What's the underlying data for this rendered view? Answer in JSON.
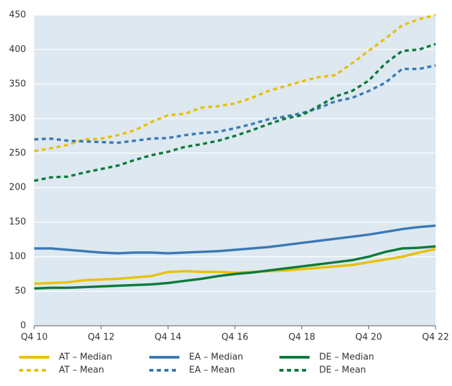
{
  "chart_data": {
    "type": "line",
    "categories": [
      "Q4 10",
      null,
      null,
      null,
      "Q4 12",
      null,
      null,
      null,
      "Q4 14",
      null,
      null,
      null,
      "Q4 16",
      null,
      null,
      null,
      "Q4 18",
      null,
      null,
      null,
      "Q4 20",
      null,
      null,
      null,
      "Q4 22"
    ],
    "series": [
      {
        "name": "AT – Median",
        "color": "#e8c100",
        "style": "solid",
        "values": [
          61,
          62,
          63,
          66,
          67,
          68,
          70,
          72,
          78,
          79,
          78,
          78,
          77,
          78,
          79,
          80,
          82,
          84,
          86,
          88,
          92,
          96,
          100,
          106,
          111
        ]
      },
      {
        "name": "AT – Mean",
        "color": "#e8c100",
        "style": "dashed",
        "values": [
          253,
          257,
          262,
          270,
          271,
          276,
          283,
          295,
          305,
          307,
          316,
          318,
          322,
          330,
          340,
          347,
          354,
          360,
          363,
          380,
          398,
          416,
          435,
          444,
          450
        ]
      },
      {
        "name": "EA – Median",
        "color": "#3b79b3",
        "style": "solid",
        "values": [
          112,
          112,
          110,
          108,
          106,
          105,
          106,
          106,
          105,
          106,
          107,
          108,
          110,
          112,
          114,
          117,
          120,
          123,
          126,
          129,
          132,
          136,
          140,
          143,
          145
        ]
      },
      {
        "name": "EA – Mean",
        "color": "#3b79b3",
        "style": "dashed",
        "values": [
          270,
          271,
          268,
          267,
          266,
          265,
          268,
          271,
          272,
          276,
          279,
          281,
          286,
          292,
          299,
          303,
          308,
          315,
          325,
          330,
          340,
          352,
          372,
          372,
          377
        ]
      },
      {
        "name": "DE – Median",
        "color": "#0b7a3b",
        "style": "solid",
        "values": [
          54,
          55,
          55,
          56,
          57,
          58,
          59,
          60,
          62,
          65,
          68,
          72,
          75,
          77,
          80,
          83,
          86,
          89,
          92,
          95,
          100,
          107,
          112,
          113,
          115
        ]
      },
      {
        "name": "DE – Mean",
        "color": "#0b7a3b",
        "style": "dashed",
        "values": [
          210,
          215,
          216,
          222,
          227,
          232,
          240,
          247,
          252,
          259,
          263,
          268,
          275,
          283,
          292,
          300,
          305,
          318,
          332,
          340,
          355,
          380,
          398,
          400,
          408
        ]
      }
    ],
    "ylim": [
      0,
      450
    ],
    "yticks": [
      0,
      50,
      100,
      150,
      200,
      250,
      300,
      350,
      400,
      450
    ],
    "grid": true,
    "background": "#dde8f1"
  }
}
